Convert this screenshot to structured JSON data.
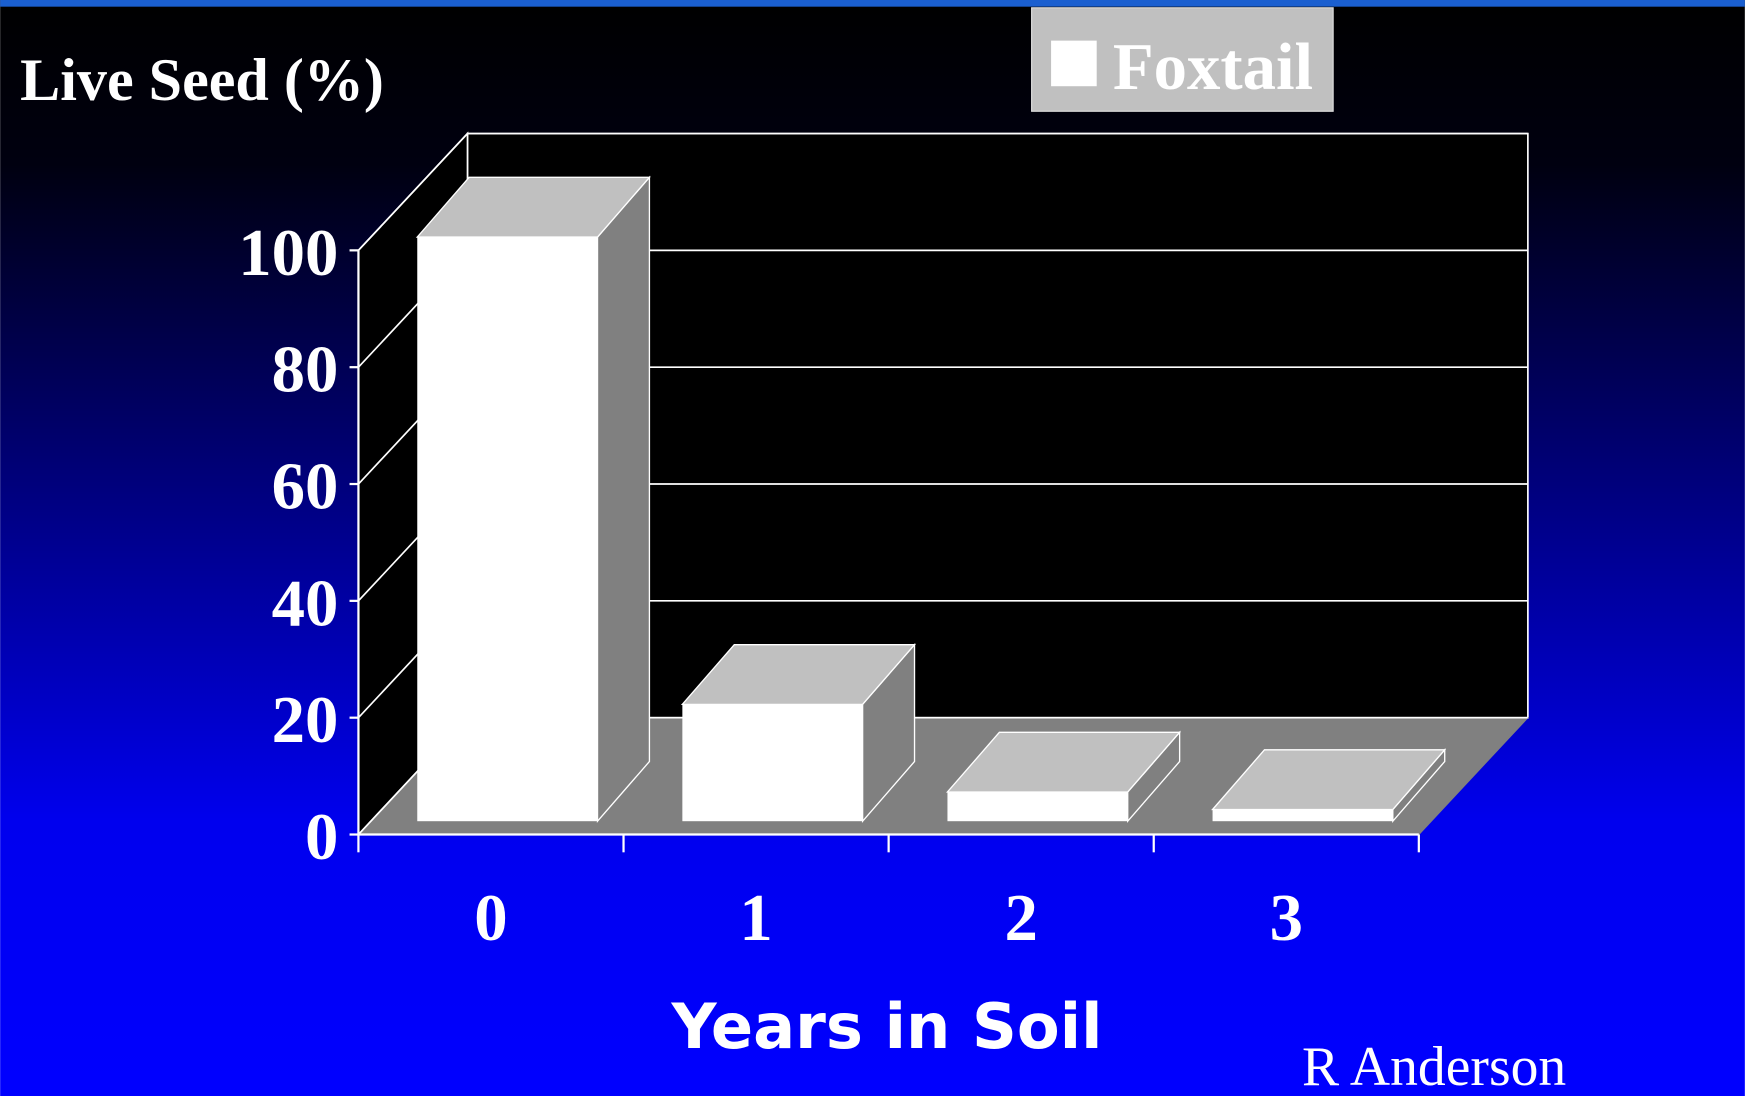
{
  "chart_data": {
    "type": "bar3d",
    "ylabel": "Live Seed (%)",
    "xlabel": "Years in Soil",
    "source": "R Anderson",
    "categories": [
      "0",
      "1",
      "2",
      "3"
    ],
    "series": [
      {
        "name": "Foxtail",
        "color": "#ffffff",
        "values": [
          100,
          20,
          5,
          2
        ]
      }
    ],
    "ylim": [
      0,
      100
    ],
    "yticks": [
      0,
      20,
      40,
      60,
      80,
      100
    ],
    "grid": true,
    "legend": "top"
  }
}
